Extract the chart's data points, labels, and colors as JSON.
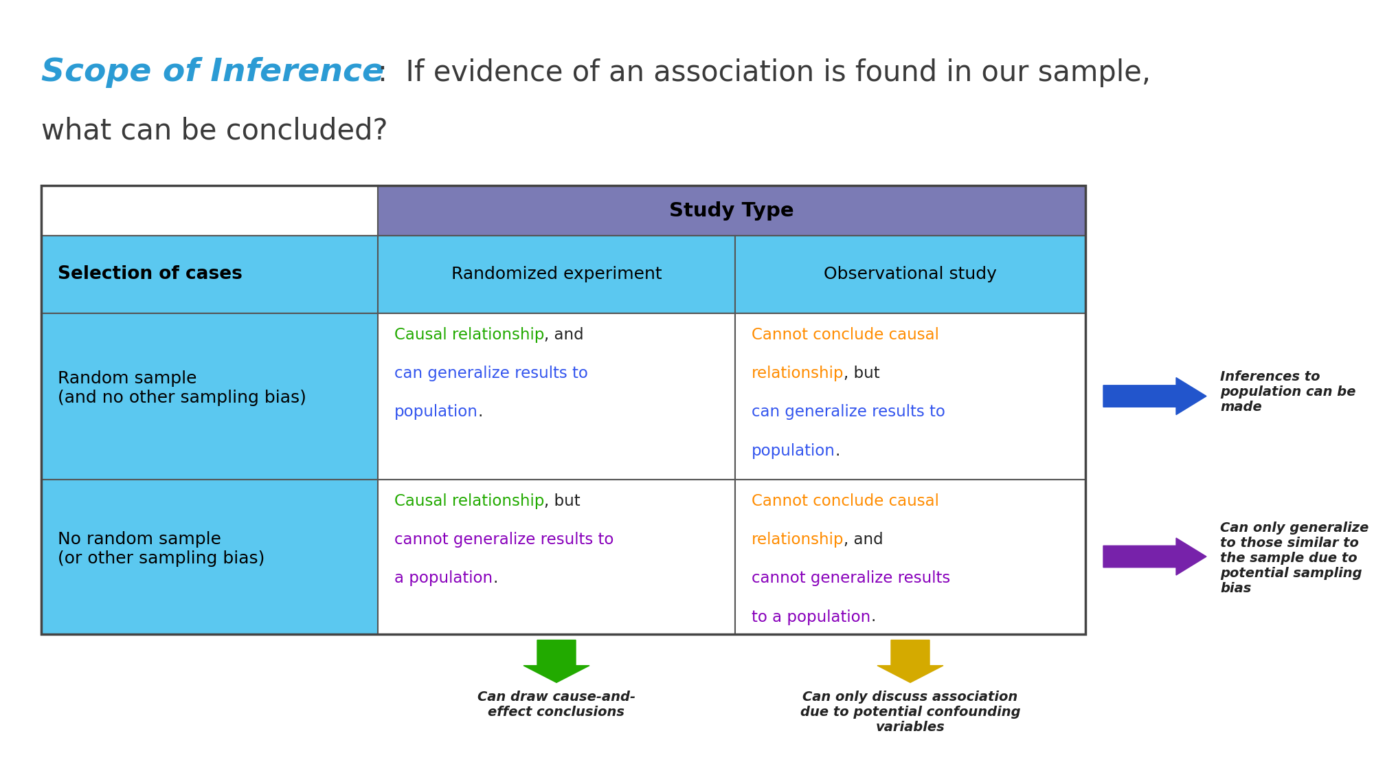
{
  "title_italic": "Scope of Inference",
  "title_colon_rest": ":  If evidence of an association is found in our sample,",
  "title_line2": "what can be concluded?",
  "title_color": "#2B9BD4",
  "title_rest_color": "#3A3A3A",
  "bg_color": "#FFFFFF",
  "header_row_bg": "#7B7BB5",
  "cyan_bg": "#5BC8F0",
  "white_bg": "#FFFFFF",
  "border_color": "#555555",
  "study_type_label": "Study Type",
  "col1_header": "Randomized experiment",
  "col2_header": "Observational study",
  "row0_header": "Selection of cases",
  "row1_label": "Random sample\n(and no other sampling bias)",
  "row2_label": "No random sample\n(or other sampling bias)",
  "green": "#22AA00",
  "orange": "#FF8C00",
  "blue_text": "#3355EE",
  "purple": "#8800BB",
  "black": "#222222",
  "arrow_blue": "#2255CC",
  "arrow_purple": "#7722AA",
  "arrow_green": "#22AA00",
  "arrow_gold": "#D4AA00",
  "ann_blue": "Inferences to\npopulation can be\nmade",
  "ann_purple": "Can only generalize\nto those similar to\nthe sample due to\npotential sampling\nbias",
  "ann_green": "Can draw cause-and-\neffect conclusions",
  "ann_gold": "Can only discuss association\ndue to potential confounding\nvariables",
  "col0": 0.03,
  "col1": 0.275,
  "col2": 0.535,
  "col3": 0.79,
  "row0": 0.76,
  "row1": 0.695,
  "row2": 0.595,
  "row3": 0.38,
  "row4": 0.18
}
